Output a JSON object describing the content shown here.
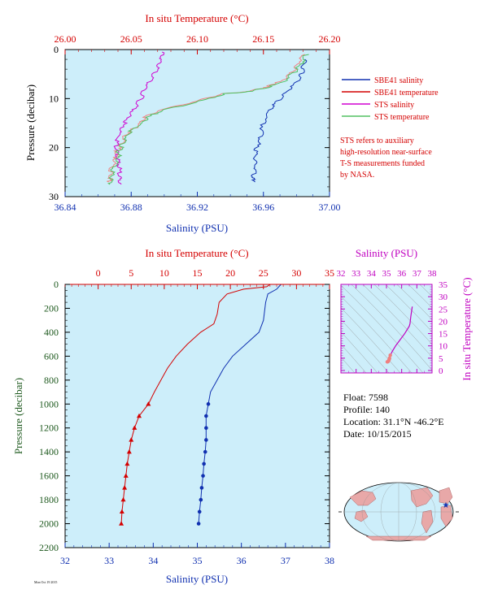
{
  "top_chart": {
    "top_axis_label": "In situ Temperature (°C)",
    "bottom_axis_label": "Salinity (PSU)",
    "y_axis_label": "Pressure (decibar)",
    "legend": [
      "SBE41 salinity",
      "SBE41 temperature",
      "STS salinity",
      "STS temperature"
    ],
    "note": [
      "STS refers to auxiliary",
      "high-resolution near-surface",
      "T-S measurements funded",
      "by NASA."
    ]
  },
  "bottom_chart": {
    "top_axis_label": "In situ Temperature (°C)",
    "bottom_axis_label": "Salinity (PSU)",
    "y_axis_label": "Pressure (decibar)"
  },
  "ts_chart": {
    "top_axis_label": "Salinity (PSU)",
    "right_axis_label": "In situ Temperature (°C)"
  },
  "float_info": {
    "float": "Float:  7598",
    "profile": "Profile:  140",
    "location": "Location:  31.1°N  -46.2°E",
    "date": "Date:  10/15/2015"
  },
  "footer_stamp": "Mon Oct 19 2015",
  "colors": {
    "sbe_salinity": "#1030b0",
    "sbe_temperature": "#d40000",
    "sts_salinity": "#d000d0",
    "sts_temperature": "#50c060",
    "sts_temp_light": "#f08080",
    "plot_bg": "#cdeefa"
  },
  "chart_data": [
    {
      "type": "line",
      "title": "",
      "xlabel": "Salinity (PSU)",
      "x2label": "In situ Temperature (°C)",
      "ylabel": "Pressure (decibar)",
      "xlim": [
        36.84,
        37.0
      ],
      "x2lim": [
        26.0,
        26.2
      ],
      "ylim": [
        30,
        0
      ],
      "x_ticks": [
        "36.84",
        "36.88",
        "36.92",
        "36.96",
        "37.00"
      ],
      "x2_ticks": [
        "26.00",
        "26.05",
        "26.10",
        "26.15",
        "26.20"
      ],
      "y_ticks": [
        "0",
        "10",
        "20",
        "30"
      ],
      "series": [
        {
          "name": "SBE41 salinity",
          "axis": "salinity",
          "points": [
            [
              36.985,
              2
            ],
            [
              36.984,
              4
            ],
            [
              36.982,
              6
            ],
            [
              36.976,
              8
            ],
            [
              36.97,
              10
            ],
            [
              36.965,
              12
            ],
            [
              36.96,
              15
            ],
            [
              36.958,
              18
            ],
            [
              36.956,
              20
            ],
            [
              36.955,
              22
            ],
            [
              36.955,
              24
            ],
            [
              36.954,
              26
            ],
            [
              36.955,
              27
            ]
          ]
        },
        {
          "name": "SBE41 temperature",
          "axis": "temperature",
          "points": [
            [
              26.18,
              1
            ],
            [
              26.176,
              3
            ],
            [
              26.17,
              5
            ],
            [
              26.16,
              7
            ],
            [
              26.14,
              8.5
            ],
            [
              26.12,
              9
            ],
            [
              26.1,
              10.5
            ],
            [
              26.07,
              12.5
            ],
            [
              26.06,
              14
            ],
            [
              26.055,
              15.5
            ],
            [
              26.047,
              17
            ],
            [
              26.043,
              19
            ],
            [
              26.04,
              20.5
            ],
            [
              26.039,
              22
            ],
            [
              26.036,
              24
            ],
            [
              26.034,
              26
            ],
            [
              26.033,
              27
            ]
          ]
        },
        {
          "name": "STS salinity",
          "axis": "salinity",
          "points": [
            [
              36.9,
              0.5
            ],
            [
              36.898,
              2
            ],
            [
              36.896,
              4
            ],
            [
              36.892,
              6
            ],
            [
              36.888,
              8
            ],
            [
              36.886,
              10
            ],
            [
              36.882,
              12
            ],
            [
              36.878,
              14
            ],
            [
              36.874,
              16
            ],
            [
              36.872,
              18
            ],
            [
              36.871,
              20
            ],
            [
              36.872,
              22
            ],
            [
              36.873,
              24
            ],
            [
              36.873,
              26
            ],
            [
              36.874,
              27.5
            ]
          ]
        },
        {
          "name": "STS temperature",
          "axis": "temperature",
          "points": [
            [
              26.182,
              1
            ],
            [
              26.178,
              3
            ],
            [
              26.172,
              5
            ],
            [
              26.162,
              7
            ],
            [
              26.142,
              8.5
            ],
            [
              26.122,
              9
            ],
            [
              26.102,
              10.5
            ],
            [
              26.072,
              12.5
            ],
            [
              26.062,
              14
            ],
            [
              26.056,
              15.5
            ],
            [
              26.048,
              17
            ],
            [
              26.044,
              19
            ],
            [
              26.041,
              20.5
            ],
            [
              26.04,
              22
            ],
            [
              26.037,
              24
            ],
            [
              26.035,
              26
            ],
            [
              26.034,
              27.5
            ]
          ]
        }
      ]
    },
    {
      "type": "line",
      "title": "",
      "xlabel": "Salinity (PSU)",
      "x2label": "In situ Temperature (°C)",
      "ylabel": "Pressure (decibar)",
      "xlim": [
        32,
        38
      ],
      "x2lim": [
        -5,
        35
      ],
      "ylim": [
        2200,
        0
      ],
      "x_ticks": [
        "32",
        "33",
        "34",
        "35",
        "36",
        "37",
        "38"
      ],
      "x2_ticks": [
        "0",
        "5",
        "10",
        "15",
        "20",
        "25",
        "30",
        "35"
      ],
      "y_ticks": [
        "0",
        "200",
        "400",
        "600",
        "800",
        "1000",
        "1200",
        "1400",
        "1600",
        "1800",
        "2000",
        "2200"
      ],
      "series": [
        {
          "name": "SBE41 salinity",
          "axis": "salinity",
          "points": [
            [
              36.9,
              0
            ],
            [
              36.8,
              40
            ],
            [
              36.6,
              80
            ],
            [
              36.55,
              150
            ],
            [
              36.5,
              300
            ],
            [
              36.4,
              400
            ],
            [
              36.1,
              500
            ],
            [
              35.8,
              600
            ],
            [
              35.6,
              700
            ],
            [
              35.45,
              800
            ],
            [
              35.3,
              900
            ],
            [
              35.25,
              1000
            ],
            [
              35.2,
              1100
            ],
            [
              35.2,
              1200
            ],
            [
              35.2,
              1300
            ],
            [
              35.18,
              1400
            ],
            [
              35.15,
              1500
            ],
            [
              35.13,
              1600
            ],
            [
              35.1,
              1700
            ],
            [
              35.08,
              1800
            ],
            [
              35.05,
              1900
            ],
            [
              35.03,
              2000
            ]
          ]
        },
        {
          "name": "SBE41 temperature",
          "axis": "temperature",
          "points": [
            [
              26.0,
              0
            ],
            [
              25.5,
              20
            ],
            [
              22,
              40
            ],
            [
              19.5,
              80
            ],
            [
              18.3,
              150
            ],
            [
              18.0,
              250
            ],
            [
              17.5,
              330
            ],
            [
              15.5,
              400
            ],
            [
              13.5,
              500
            ],
            [
              11.8,
              600
            ],
            [
              10.5,
              700
            ],
            [
              9.5,
              800
            ],
            [
              8.5,
              900
            ],
            [
              7.6,
              1000
            ],
            [
              6.2,
              1100
            ],
            [
              5.5,
              1200
            ],
            [
              5.0,
              1300
            ],
            [
              4.7,
              1400
            ],
            [
              4.4,
              1500
            ],
            [
              4.2,
              1600
            ],
            [
              4.0,
              1700
            ],
            [
              3.8,
              1800
            ],
            [
              3.6,
              1900
            ],
            [
              3.5,
              2000
            ]
          ]
        }
      ]
    },
    {
      "type": "scatter",
      "title": "",
      "xlabel": "Salinity (PSU)",
      "ylabel": "In situ Temperature (°C)",
      "xlim": [
        32,
        38
      ],
      "ylim": [
        -1,
        35
      ],
      "x_ticks": [
        "32",
        "33",
        "34",
        "35",
        "36",
        "37",
        "38"
      ],
      "y_ticks": [
        "0",
        "5",
        "10",
        "15",
        "20",
        "25",
        "30",
        "35"
      ],
      "points": [
        [
          36.7,
          26
        ],
        [
          36.6,
          22
        ],
        [
          36.55,
          19
        ],
        [
          36.5,
          18
        ],
        [
          36.2,
          15
        ],
        [
          35.9,
          12.5
        ],
        [
          35.6,
          10
        ],
        [
          35.4,
          8
        ],
        [
          35.25,
          6.2
        ],
        [
          35.2,
          5
        ],
        [
          35.18,
          4.5
        ],
        [
          35.15,
          4
        ],
        [
          35.1,
          3.6
        ],
        [
          35.05,
          3.5
        ]
      ]
    }
  ]
}
